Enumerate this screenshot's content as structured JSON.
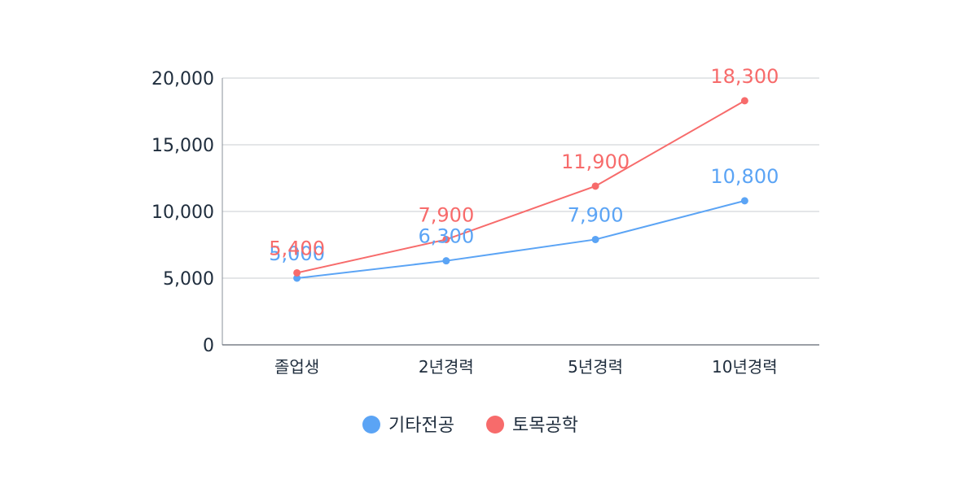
{
  "chart_data": {
    "type": "line",
    "categories": [
      "졸업생",
      "2년경력",
      "5년경력",
      "10년경력"
    ],
    "series": [
      {
        "name": "기타전공",
        "color": "#5ba4f5",
        "values": [
          5000,
          6300,
          7900,
          10800
        ],
        "labels": [
          "5,000",
          "6,300",
          "7,900",
          "10,800"
        ]
      },
      {
        "name": "토목공학",
        "color": "#f76b6b",
        "values": [
          5400,
          7900,
          11900,
          18300
        ],
        "labels": [
          "5,400",
          "7,900",
          "11,900",
          "18,300"
        ]
      }
    ],
    "y_ticks": [
      0,
      5000,
      10000,
      15000,
      20000
    ],
    "y_tick_labels": [
      "0",
      "5,000",
      "10,000",
      "15,000",
      "20,000"
    ],
    "ylim": [
      0,
      20000
    ],
    "grid": true,
    "legend_position": "bottom",
    "title": "",
    "xlabel": "",
    "ylabel": ""
  }
}
